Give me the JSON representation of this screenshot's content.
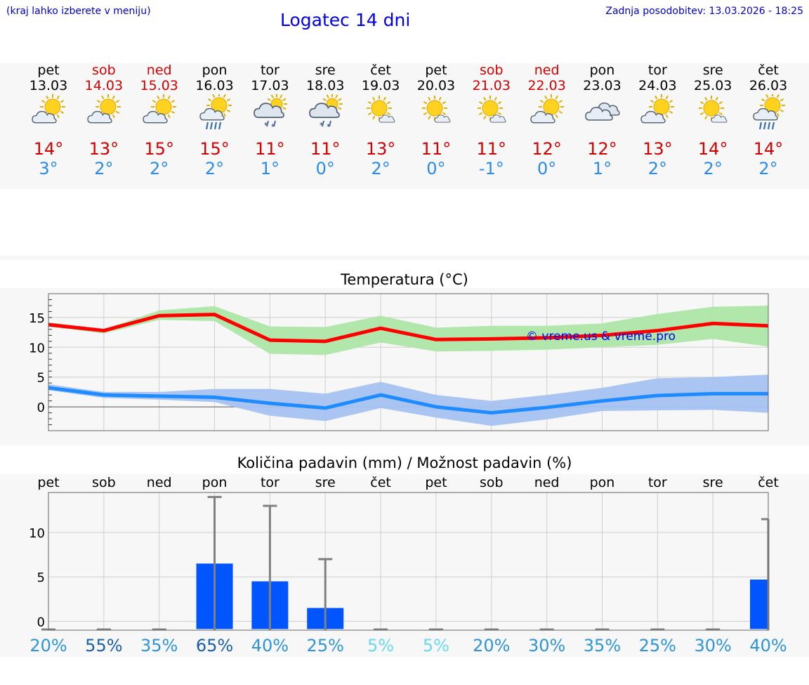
{
  "header": {
    "location_hint": "(kraj lahko izberete v meniju)",
    "title": "Logatec 14 dni",
    "updated": "Zadnja posodobitev: 13.03.2026 - 18:25"
  },
  "days": [
    {
      "name": "pet",
      "date": "13.03",
      "weekend": false,
      "icon": "partly-cloudy-icon",
      "max": "14°",
      "min": "3°"
    },
    {
      "name": "sob",
      "date": "14.03",
      "weekend": true,
      "icon": "partly-cloudy-icon",
      "max": "13°",
      "min": "2°"
    },
    {
      "name": "ned",
      "date": "15.03",
      "weekend": true,
      "icon": "partly-cloudy-icon",
      "max": "15°",
      "min": "2°"
    },
    {
      "name": "pon",
      "date": "16.03",
      "weekend": false,
      "icon": "sun-cloud-rain-icon",
      "max": "15°",
      "min": "2°"
    },
    {
      "name": "tor",
      "date": "17.03",
      "weekend": false,
      "icon": "cloudy-sleet-icon",
      "max": "11°",
      "min": "1°"
    },
    {
      "name": "sre",
      "date": "18.03",
      "weekend": false,
      "icon": "cloudy-sleet-icon",
      "max": "11°",
      "min": "0°"
    },
    {
      "name": "čet",
      "date": "19.03",
      "weekend": false,
      "icon": "mostly-sunny-icon",
      "max": "13°",
      "min": "2°"
    },
    {
      "name": "pet",
      "date": "20.03",
      "weekend": false,
      "icon": "mostly-sunny-icon",
      "max": "11°",
      "min": "0°"
    },
    {
      "name": "sob",
      "date": "21.03",
      "weekend": true,
      "icon": "mostly-sunny-icon",
      "max": "11°",
      "min": "-1°"
    },
    {
      "name": "ned",
      "date": "22.03",
      "weekend": true,
      "icon": "partly-cloudy-icon",
      "max": "12°",
      "min": "0°"
    },
    {
      "name": "pon",
      "date": "23.03",
      "weekend": false,
      "icon": "overcast-icon",
      "max": "12°",
      "min": "1°"
    },
    {
      "name": "tor",
      "date": "24.03",
      "weekend": false,
      "icon": "partly-cloudy-icon",
      "max": "13°",
      "min": "2°"
    },
    {
      "name": "sre",
      "date": "25.03",
      "weekend": false,
      "icon": "mostly-sunny-icon",
      "max": "14°",
      "min": "2°"
    },
    {
      "name": "čet",
      "date": "26.03",
      "weekend": false,
      "icon": "sun-cloud-rain-icon",
      "max": "14°",
      "min": "2°"
    }
  ],
  "colors": {
    "max_temp": "#ff0000",
    "max_band": "#aee6a6",
    "min_temp": "#1e8cff",
    "min_band": "#a6c2f2",
    "bar": "#0055ff",
    "whisker": "#808080"
  },
  "chart_data": [
    {
      "type": "line",
      "title": "Temperatura (°C)",
      "watermark": "© vreme.us & vreme.pro",
      "ylim": [
        -4,
        19
      ],
      "yticks": [
        0,
        5,
        10,
        15
      ],
      "x": [
        0,
        1,
        2,
        3,
        4,
        5,
        6,
        7,
        8,
        9,
        10,
        11,
        12,
        13
      ],
      "series": [
        {
          "name": "max",
          "values": [
            13.8,
            12.8,
            15.3,
            15.5,
            11.2,
            11.0,
            13.2,
            11.3,
            11.4,
            11.6,
            12.0,
            12.8,
            14.0,
            13.6
          ],
          "band_low": [
            13.5,
            12.3,
            14.6,
            14.4,
            8.9,
            8.7,
            10.8,
            9.3,
            9.4,
            9.6,
            10.0,
            10.4,
            11.4,
            10.1
          ],
          "band_high": [
            14.2,
            13.0,
            16.2,
            16.9,
            13.5,
            13.4,
            15.3,
            13.3,
            13.6,
            13.6,
            14.0,
            15.6,
            16.8,
            17.0
          ]
        },
        {
          "name": "min",
          "values": [
            3.2,
            2.0,
            1.8,
            1.6,
            0.6,
            -0.2,
            2.0,
            0.0,
            -1.0,
            -0.1,
            1.0,
            1.9,
            2.2,
            2.2
          ],
          "band_low": [
            2.8,
            1.5,
            1.2,
            0.8,
            -1.5,
            -2.4,
            -0.2,
            -1.8,
            -3.2,
            -2.1,
            -0.7,
            -0.6,
            -0.5,
            -1.0
          ],
          "band_high": [
            3.8,
            2.5,
            2.5,
            3.0,
            3.0,
            2.2,
            4.2,
            2.0,
            1.0,
            2.0,
            3.2,
            4.8,
            5.0,
            5.4
          ]
        }
      ]
    },
    {
      "type": "bar",
      "title": "Količina padavin (mm) / Možnost padavin (%)",
      "categories": [
        "pet",
        "sob",
        "ned",
        "pon",
        "tor",
        "sre",
        "čet",
        "pet",
        "sob",
        "ned",
        "pon",
        "tor",
        "sre",
        "čet"
      ],
      "ylim": [
        -1,
        14.5
      ],
      "yticks": [
        0,
        5,
        10
      ],
      "values": [
        0,
        0,
        0,
        6.5,
        4.5,
        1.5,
        0,
        0,
        0,
        0,
        0,
        0,
        0,
        4.7
      ],
      "max_values": [
        0,
        0,
        0,
        14,
        13,
        7,
        0,
        0,
        0,
        0,
        0,
        0,
        0,
        11.5
      ],
      "probability": [
        "20%",
        "55%",
        "35%",
        "65%",
        "40%",
        "25%",
        "5%",
        "5%",
        "20%",
        "30%",
        "35%",
        "25%",
        "30%",
        "40%"
      ],
      "probability_colors": [
        "#2e95d8",
        "#1a5fa8",
        "#2e95d8",
        "#1a5fa8",
        "#2e95d8",
        "#2e95d8",
        "#6ad8f0",
        "#6ad8f0",
        "#2e95d8",
        "#2e95d8",
        "#2e95d8",
        "#2e95d8",
        "#2e95d8",
        "#2e95d8"
      ]
    }
  ]
}
